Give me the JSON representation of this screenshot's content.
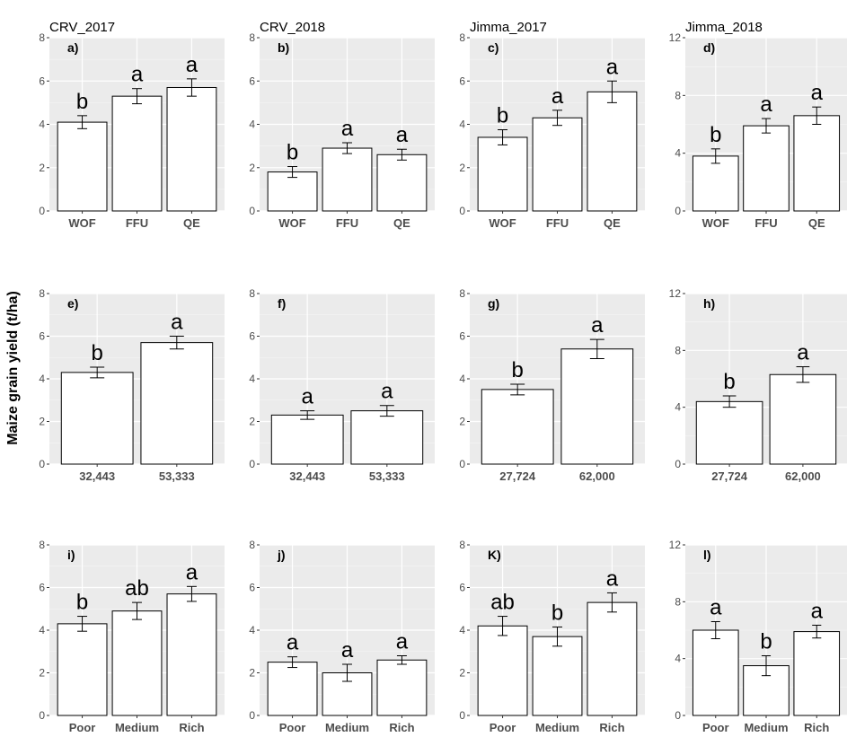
{
  "figure": {
    "ylabel": "Maize grain yield (t/ha)"
  },
  "chart_data": [
    {
      "type": "bar",
      "title": "CRV_2017",
      "panel_label": "a)",
      "categories": [
        "WOF",
        "FFU",
        "QE"
      ],
      "values": [
        4.1,
        5.3,
        5.7
      ],
      "errors": [
        0.3,
        0.35,
        0.4
      ],
      "letters": [
        "b",
        "a",
        "a"
      ],
      "ylim": [
        0,
        8
      ],
      "yticks": [
        0,
        2,
        4,
        6,
        8
      ],
      "ytick_labels": [
        "0",
        "2",
        "4",
        "6",
        "8"
      ]
    },
    {
      "type": "bar",
      "title": "CRV_2018",
      "panel_label": "b)",
      "categories": [
        "WOF",
        "FFU",
        "QE"
      ],
      "values": [
        1.8,
        2.9,
        2.6
      ],
      "errors": [
        0.25,
        0.25,
        0.25
      ],
      "letters": [
        "b",
        "a",
        "a"
      ],
      "ylim": [
        0,
        8
      ],
      "yticks": [
        0,
        2,
        4,
        6,
        8
      ],
      "ytick_labels": [
        "0",
        "2",
        "4",
        "6",
        "8"
      ]
    },
    {
      "type": "bar",
      "title": "Jimma_2017",
      "panel_label": "c)",
      "categories": [
        "WOF",
        "FFU",
        "QE"
      ],
      "values": [
        3.4,
        4.3,
        5.5
      ],
      "errors": [
        0.35,
        0.35,
        0.5
      ],
      "letters": [
        "b",
        "a",
        "a"
      ],
      "ylim": [
        0,
        8
      ],
      "yticks": [
        0,
        2,
        4,
        6,
        8
      ],
      "ytick_labels": [
        "0",
        "2",
        "4",
        "6",
        "8"
      ]
    },
    {
      "type": "bar",
      "title": "Jimma_2018",
      "panel_label": "d)",
      "categories": [
        "WOF",
        "FFU",
        "QE"
      ],
      "values": [
        3.8,
        5.9,
        6.6
      ],
      "errors": [
        0.5,
        0.5,
        0.6
      ],
      "letters": [
        "b",
        "a",
        "a"
      ],
      "ylim": [
        0,
        12
      ],
      "yticks": [
        0,
        4,
        8,
        12
      ],
      "ytick_labels": [
        "0",
        "4",
        "8",
        "12"
      ]
    },
    {
      "type": "bar",
      "title": "",
      "panel_label": "e)",
      "categories": [
        "32,443",
        "53,333"
      ],
      "values": [
        4.3,
        5.7
      ],
      "errors": [
        0.25,
        0.3
      ],
      "letters": [
        "b",
        "a"
      ],
      "ylim": [
        0,
        8
      ],
      "yticks": [
        0,
        2,
        4,
        6,
        8
      ],
      "ytick_labels": [
        "0",
        "2",
        "4",
        "6",
        "8"
      ]
    },
    {
      "type": "bar",
      "title": "",
      "panel_label": "f)",
      "categories": [
        "32,443",
        "53,333"
      ],
      "values": [
        2.3,
        2.5
      ],
      "errors": [
        0.2,
        0.25
      ],
      "letters": [
        "a",
        "a"
      ],
      "ylim": [
        0,
        8
      ],
      "yticks": [
        0,
        2,
        4,
        6,
        8
      ],
      "ytick_labels": [
        "0",
        "2",
        "4",
        "6",
        "8"
      ]
    },
    {
      "type": "bar",
      "title": "",
      "panel_label": "g)",
      "categories": [
        "27,724",
        "62,000"
      ],
      "values": [
        3.5,
        5.4
      ],
      "errors": [
        0.25,
        0.45
      ],
      "letters": [
        "b",
        "a"
      ],
      "ylim": [
        0,
        8
      ],
      "yticks": [
        0,
        2,
        4,
        6,
        8
      ],
      "ytick_labels": [
        "0",
        "2",
        "4",
        "6",
        "8"
      ]
    },
    {
      "type": "bar",
      "title": "",
      "panel_label": "h)",
      "categories": [
        "27,724",
        "62,000"
      ],
      "values": [
        4.4,
        6.3
      ],
      "errors": [
        0.4,
        0.55
      ],
      "letters": [
        "b",
        "a"
      ],
      "ylim": [
        0,
        12
      ],
      "yticks": [
        0,
        4,
        8,
        12
      ],
      "ytick_labels": [
        "0",
        "4",
        "8",
        "12"
      ]
    },
    {
      "type": "bar",
      "title": "",
      "panel_label": "i)",
      "categories": [
        "Poor",
        "Medium",
        "Rich"
      ],
      "values": [
        4.3,
        4.9,
        5.7
      ],
      "errors": [
        0.35,
        0.4,
        0.35
      ],
      "letters": [
        "b",
        "ab",
        "a"
      ],
      "ylim": [
        0,
        8
      ],
      "yticks": [
        0,
        2,
        4,
        6,
        8
      ],
      "ytick_labels": [
        "0",
        "2",
        "4",
        "6",
        "8"
      ]
    },
    {
      "type": "bar",
      "title": "",
      "panel_label": "j)",
      "categories": [
        "Poor",
        "Medium",
        "Rich"
      ],
      "values": [
        2.5,
        2.0,
        2.6
      ],
      "errors": [
        0.25,
        0.4,
        0.2
      ],
      "letters": [
        "a",
        "a",
        "a"
      ],
      "ylim": [
        0,
        8
      ],
      "yticks": [
        0,
        2,
        4,
        6,
        8
      ],
      "ytick_labels": [
        "0",
        "2",
        "4",
        "6",
        "8"
      ]
    },
    {
      "type": "bar",
      "title": "",
      "panel_label": "K)",
      "categories": [
        "Poor",
        "Medium",
        "Rich"
      ],
      "values": [
        4.2,
        3.7,
        5.3
      ],
      "errors": [
        0.45,
        0.45,
        0.45
      ],
      "letters": [
        "ab",
        "b",
        "a"
      ],
      "ylim": [
        0,
        8
      ],
      "yticks": [
        0,
        2,
        4,
        6,
        8
      ],
      "ytick_labels": [
        "0",
        "2",
        "4",
        "6",
        "8"
      ]
    },
    {
      "type": "bar",
      "title": "",
      "panel_label": "l)",
      "categories": [
        "Poor",
        "Medium",
        "Rich"
      ],
      "values": [
        6.0,
        3.5,
        5.9
      ],
      "errors": [
        0.6,
        0.7,
        0.45
      ],
      "letters": [
        "a",
        "b",
        "a"
      ],
      "ylim": [
        0,
        12
      ],
      "yticks": [
        0,
        4,
        8,
        12
      ],
      "ytick_labels": [
        "0",
        "4",
        "8",
        "12"
      ]
    }
  ]
}
